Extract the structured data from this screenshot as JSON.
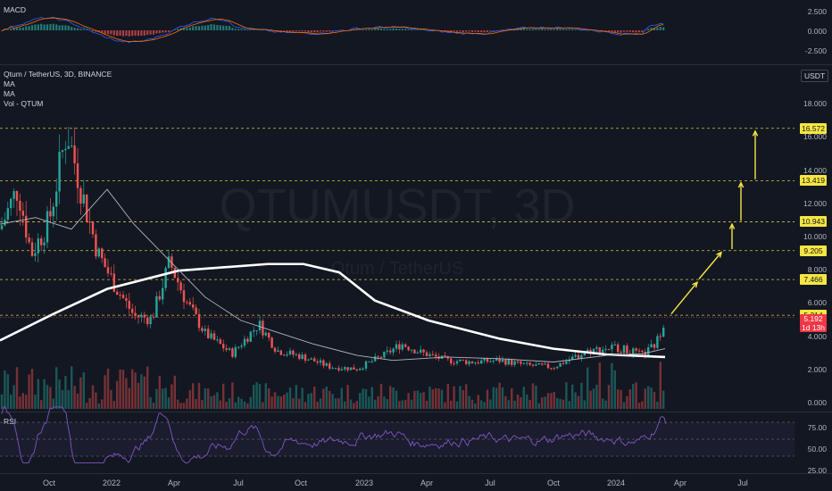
{
  "macd": {
    "title": "MACD",
    "ticks": [
      "2.500",
      "0.000",
      "-2.500"
    ]
  },
  "main": {
    "symbol_line": "Qtum / TetherUS, 3D, BINANCE",
    "legend": [
      "MA",
      "MA",
      "Vol - QTUM"
    ],
    "watermark_big": "QTUMUSDT, 3D",
    "watermark_small": "Qtum / TetherUS",
    "currency": "USDT",
    "ticks": [
      "18.000",
      "16.000",
      "14.000",
      "12.000",
      "10.000",
      "8.000",
      "6.000",
      "4.000",
      "2.000",
      "0.000"
    ],
    "levels": [
      {
        "label": "16.572",
        "color": "#f5e642"
      },
      {
        "label": "13.419",
        "color": "#f5e642"
      },
      {
        "label": "10.943",
        "color": "#f5e642"
      },
      {
        "label": "9.205",
        "color": "#f5e642"
      },
      {
        "label": "7.466",
        "color": "#f5e642"
      },
      {
        "label": "5.314",
        "color": "#f5e642"
      }
    ],
    "price_tag": {
      "label": "5.192",
      "sub": "1d 13h",
      "color": "#f23645"
    }
  },
  "rsi": {
    "title": "RSI",
    "ticks": [
      "75.00",
      "50.00",
      "25.00"
    ]
  },
  "xaxis": [
    "Oct",
    "2022",
    "Apr",
    "Jul",
    "Oct",
    "2023",
    "Apr",
    "Jul",
    "Oct",
    "2024",
    "Apr",
    "Jul"
  ],
  "colors": {
    "up": "#26a69a",
    "down": "#ef5350",
    "ma200": "#ffffff",
    "ma50": "#b2b5be",
    "rsi": "#7e57c2",
    "arrow": "#f5e642"
  }
}
